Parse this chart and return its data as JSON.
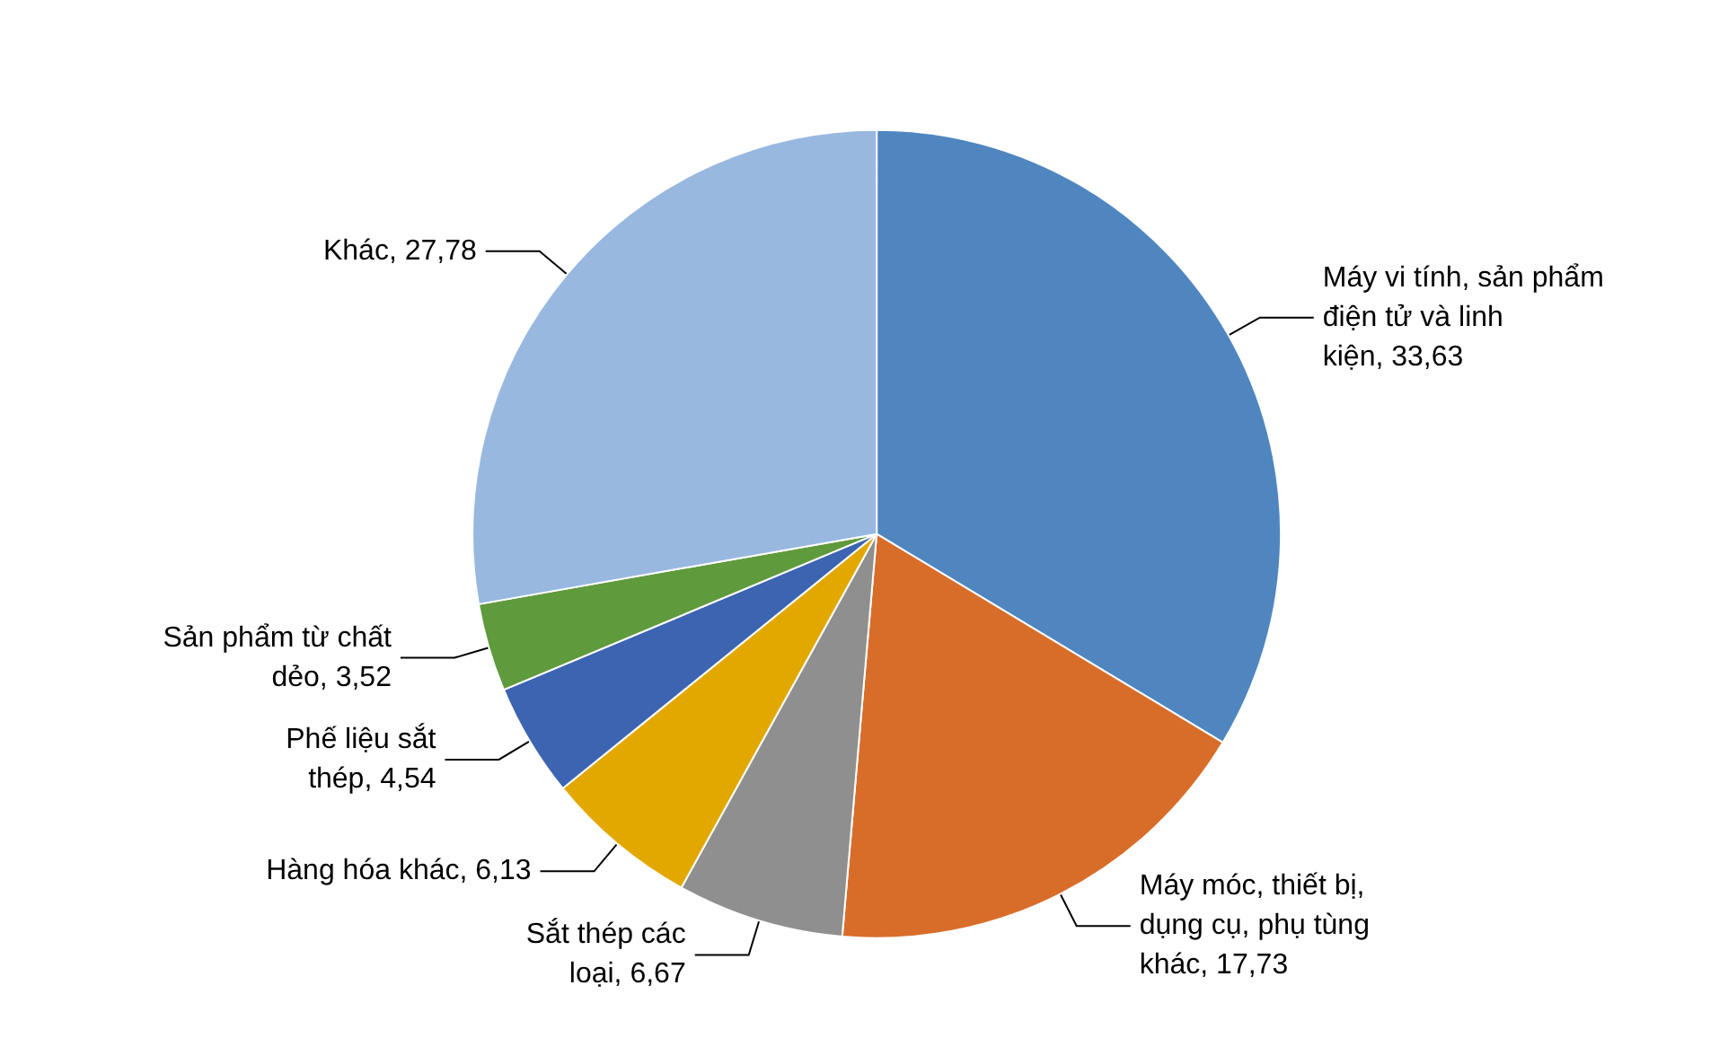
{
  "chart_data": {
    "type": "pie",
    "categories": [
      "Máy vi tính, sản phẩm điện tử và linh kiện",
      "Máy móc, thiết bị, dụng cụ, phụ tùng khác",
      "Sắt thép các loại",
      "Hàng hóa khác",
      "Phế liệu sắt thép",
      "Sản phẩm từ chất dẻo",
      "Khác"
    ],
    "values": [
      33.63,
      17.73,
      6.67,
      6.13,
      4.54,
      3.52,
      27.78
    ],
    "value_labels": [
      "33,63",
      "17,73",
      "6,67",
      "6,13",
      "4,54",
      "3,52",
      "27,78"
    ],
    "colors": [
      "#4f86c0",
      "#d86d2a",
      "#8f8f8f",
      "#e3a800",
      "#3d64b0",
      "#5f9a3d",
      "#98b8e0"
    ],
    "legend": false
  }
}
